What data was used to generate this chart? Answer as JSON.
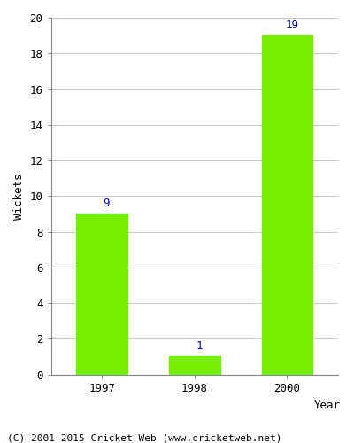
{
  "years": [
    "1997",
    "1998",
    "2000"
  ],
  "values": [
    9,
    1,
    19
  ],
  "bar_color": "#77ee00",
  "bar_width": 0.55,
  "xlabel": "Year",
  "ylabel": "Wickets",
  "ylim": [
    0,
    20
  ],
  "yticks": [
    0,
    2,
    4,
    6,
    8,
    10,
    12,
    14,
    16,
    18,
    20
  ],
  "label_color": "#0000CC",
  "label_fontsize": 9,
  "axis_fontsize": 9,
  "tick_fontsize": 9,
  "footer_text": "(C) 2001-2015 Cricket Web (www.cricketweb.net)",
  "footer_fontsize": 8,
  "background_color": "#ffffff",
  "grid_color": "#cccccc"
}
